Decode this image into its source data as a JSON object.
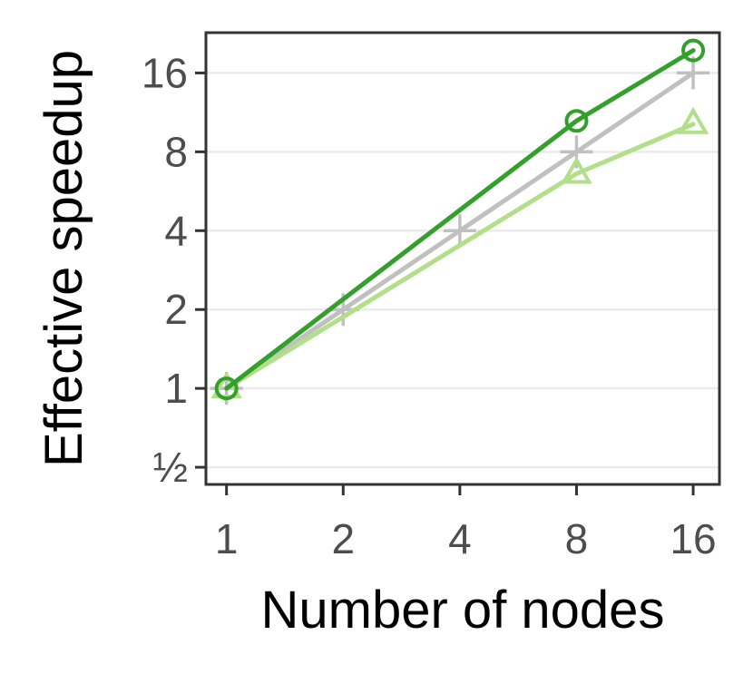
{
  "chart_data": {
    "type": "line",
    "title": "",
    "xlabel": "Number of nodes",
    "ylabel": "Effective speedup",
    "x_scale": "log2",
    "y_scale": "log2",
    "x": [
      1,
      2,
      4,
      8,
      16
    ],
    "x_tick_labels": [
      "1",
      "2",
      "4",
      "8",
      "16"
    ],
    "y_ticks": [
      0.5,
      1,
      2,
      4,
      8,
      16
    ],
    "y_tick_labels": [
      "½",
      "1",
      "2",
      "4",
      "8",
      "16"
    ],
    "xlim": [
      0.885,
      18.7
    ],
    "ylim": [
      0.43,
      22.8
    ],
    "grid": "horizontal major",
    "legend": "none",
    "series": [
      {
        "color": "#c0c0c0",
        "marker": "plus",
        "x": [
          1,
          2,
          4,
          8,
          16
        ],
        "values": [
          1,
          2,
          4,
          8,
          16
        ]
      },
      {
        "color": "#b2df8a",
        "marker": "triangle",
        "x": [
          1,
          8,
          16
        ],
        "values": [
          1,
          6.6,
          10.2
        ]
      },
      {
        "color": "#33a02c",
        "marker": "circle",
        "x": [
          1,
          8,
          16
        ],
        "values": [
          1,
          10.5,
          19.5
        ]
      }
    ]
  }
}
